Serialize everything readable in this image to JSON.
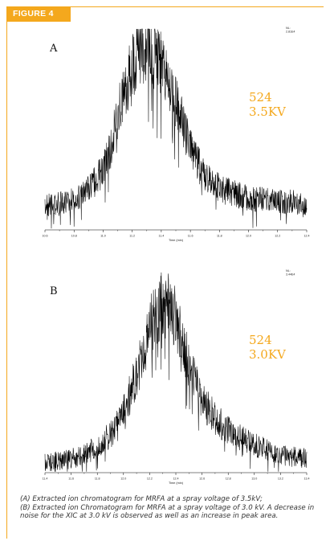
{
  "figure_label": "FIGURE 4",
  "caption": {
    "line_a": "(A) Extracted ion chromatogram for MRFA at a spray voltage of 3.5kV;",
    "line_b": "(B) Extracted ion Chromatogram for MRFA at a spray voltage of 3.0 kV. A decrease in noise for the XIC at 3.0 kV is observed as well as an increase in peak area."
  },
  "colors": {
    "accent": "#f4a81d",
    "trace": "#000000"
  },
  "chart_data": [
    {
      "type": "line",
      "panel_label": "A",
      "annotation_lines": [
        "524",
        "3.5KV"
      ],
      "nl_label": "NL:",
      "nl_value": "2.81E4",
      "xlabel": "Time (min)",
      "ylabel": "",
      "xlim": [
        10.6,
        12.4
      ],
      "ylim": [
        0,
        100
      ],
      "xticks": [
        "10.6",
        "10.8",
        "11.0",
        "11.2",
        "11.4",
        "11.6",
        "11.8",
        "12.0",
        "12.2",
        "12.4"
      ],
      "series": [
        {
          "x": [
            10.6,
            10.7,
            10.8,
            10.9,
            11.0,
            11.05,
            11.1,
            11.15,
            11.2,
            11.25,
            11.3,
            11.35,
            11.4,
            11.45,
            11.5,
            11.55,
            11.6,
            11.65,
            11.7,
            11.8,
            11.9,
            12.0,
            12.1,
            12.2,
            12.3,
            12.4
          ],
          "values": [
            12,
            13,
            15,
            20,
            30,
            40,
            56,
            70,
            82,
            90,
            92,
            88,
            82,
            73,
            63,
            52,
            41,
            33,
            27,
            21,
            18,
            16,
            15,
            14,
            14,
            13
          ]
        }
      ]
    },
    {
      "type": "line",
      "panel_label": "B",
      "annotation_lines": [
        "524",
        "3.0KV"
      ],
      "nl_label": "NL:",
      "nl_value": "3.44E4",
      "xlabel": "Time (min)",
      "ylabel": "",
      "xlim": [
        11.4,
        13.4
      ],
      "ylim": [
        0,
        100
      ],
      "xticks": [
        "11.4",
        "11.6",
        "11.8",
        "12.0",
        "12.2",
        "12.4",
        "12.6",
        "12.8",
        "13.0",
        "13.2",
        "13.4"
      ],
      "series": [
        {
          "x": [
            11.4,
            11.5,
            11.6,
            11.7,
            11.8,
            11.9,
            12.0,
            12.1,
            12.15,
            12.2,
            12.25,
            12.3,
            12.35,
            12.4,
            12.45,
            12.5,
            12.55,
            12.6,
            12.7,
            12.8,
            12.9,
            13.0,
            13.1,
            13.2,
            13.3,
            13.4
          ],
          "values": [
            5,
            6,
            7,
            9,
            13,
            19,
            30,
            48,
            60,
            72,
            80,
            84,
            82,
            76,
            66,
            55,
            44,
            36,
            27,
            21,
            17,
            14,
            11,
            9,
            8,
            7
          ]
        }
      ]
    }
  ]
}
